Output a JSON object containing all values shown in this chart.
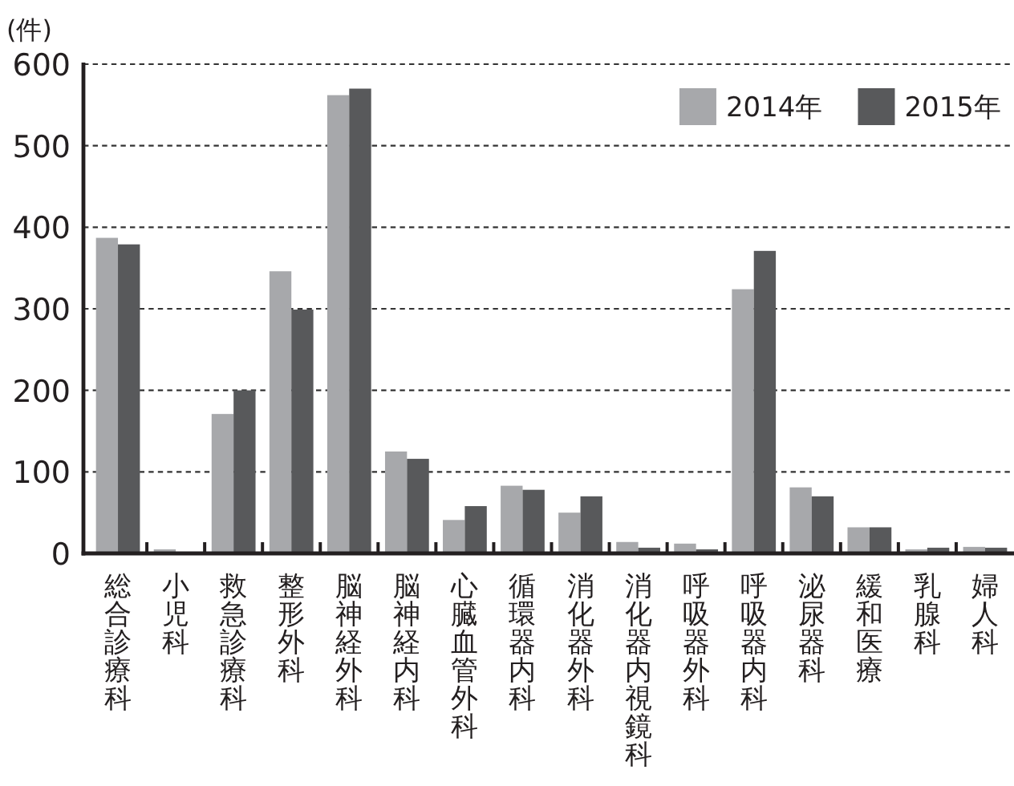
{
  "chart_data": {
    "type": "bar",
    "ylabel": "(件)",
    "categories": [
      "総合診療科",
      "小児科",
      "救急診療科",
      "整形外科",
      "脳神経外科",
      "脳神経内科",
      "心臓血管外科",
      "循環器内科",
      "消化器外科",
      "消化器内視鏡科",
      "呼吸器外科",
      "呼吸器内科",
      "泌尿器科",
      "緩和医療",
      "乳腺科",
      "婦人科"
    ],
    "series": [
      {
        "name": "2014年",
        "color": "#a7a8ab",
        "values": [
          387,
          5,
          171,
          346,
          562,
          125,
          41,
          83,
          50,
          14,
          12,
          324,
          81,
          32,
          5,
          8
        ]
      },
      {
        "name": "2015年",
        "color": "#58595b",
        "values": [
          379,
          0,
          200,
          299,
          570,
          116,
          58,
          78,
          70,
          7,
          5,
          371,
          70,
          32,
          7,
          7
        ]
      }
    ],
    "ylim": [
      0,
      600
    ],
    "yticks": [
      0,
      100,
      200,
      300,
      400,
      500,
      600
    ],
    "grid": "y",
    "legend": "top right"
  }
}
